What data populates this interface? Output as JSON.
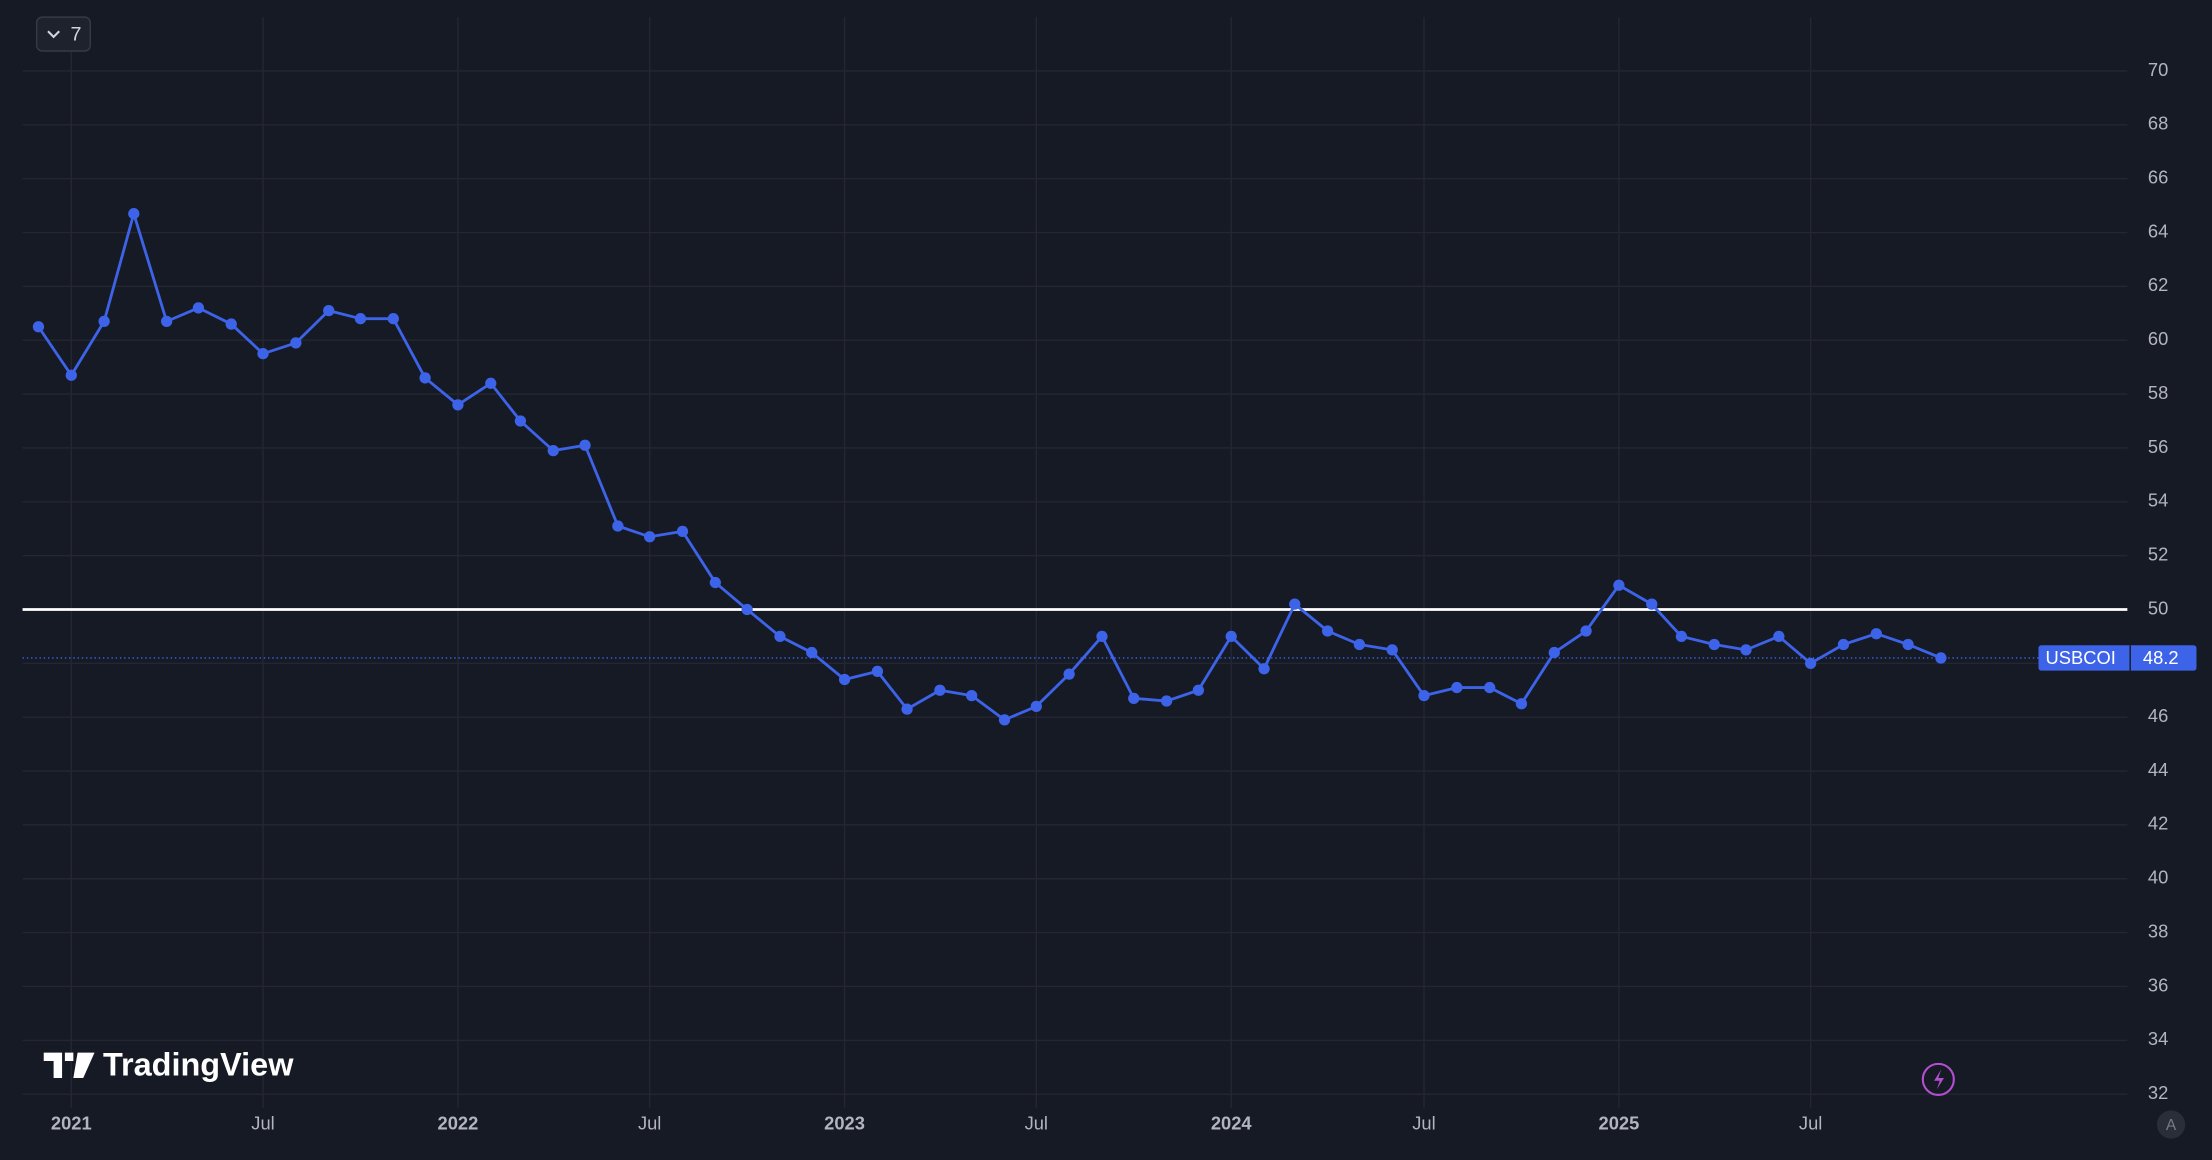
{
  "chart_data": {
    "type": "line",
    "x": [
      "2020-12",
      "2021-01",
      "2021-02",
      "2021-03",
      "2021-04",
      "2021-05",
      "2021-06",
      "2021-07",
      "2021-08",
      "2021-09",
      "2021-10",
      "2021-11",
      "2021-12",
      "2022-01",
      "2022-02",
      "2022-03",
      "2022-04",
      "2022-05",
      "2022-06",
      "2022-07",
      "2022-08",
      "2022-09",
      "2022-10",
      "2022-11",
      "2022-12",
      "2023-01",
      "2023-02",
      "2023-03",
      "2023-04",
      "2023-05",
      "2023-06",
      "2023-07",
      "2023-08",
      "2023-09",
      "2023-10",
      "2023-11",
      "2023-12",
      "2024-01",
      "2024-02",
      "2024-03",
      "2024-04",
      "2024-05",
      "2024-06",
      "2024-07",
      "2024-08",
      "2024-09",
      "2024-10",
      "2024-11",
      "2024-12",
      "2025-01",
      "2025-02",
      "2025-03",
      "2025-04",
      "2025-05",
      "2025-06",
      "2025-07",
      "2025-08",
      "2025-09",
      "2025-10",
      "2025-11"
    ],
    "series": [
      {
        "name": "USBCOI",
        "color": "#3d63e8",
        "values": [
          60.5,
          58.7,
          60.7,
          64.7,
          60.7,
          61.2,
          60.6,
          59.5,
          59.9,
          61.1,
          60.8,
          60.8,
          58.6,
          57.6,
          58.4,
          57.0,
          55.9,
          56.1,
          53.1,
          52.7,
          52.9,
          51.0,
          50.0,
          49.0,
          48.4,
          47.4,
          47.7,
          46.3,
          47.0,
          46.8,
          45.9,
          46.4,
          47.6,
          49.0,
          46.7,
          46.6,
          47.0,
          49.0,
          47.8,
          50.2,
          49.2,
          48.7,
          48.5,
          46.8,
          47.1,
          47.1,
          46.5,
          48.4,
          49.2,
          50.9,
          50.2,
          49.0,
          48.7,
          48.5,
          49.0,
          48.0,
          48.7,
          49.1,
          48.7,
          48.2
        ]
      }
    ],
    "xlim": [
      "2020-11-16",
      "2026-04-26"
    ],
    "xticks": [
      {
        "value": "2021-01",
        "label": "2021"
      },
      {
        "value": "2021-07",
        "label": "Jul"
      },
      {
        "value": "2022-01",
        "label": "2022"
      },
      {
        "value": "2022-07",
        "label": "Jul"
      },
      {
        "value": "2023-01",
        "label": "2023"
      },
      {
        "value": "2023-07",
        "label": "Jul"
      },
      {
        "value": "2024-01",
        "label": "2024"
      },
      {
        "value": "2024-07",
        "label": "Jul"
      },
      {
        "value": "2025-01",
        "label": "2025"
      },
      {
        "value": "2025-07",
        "label": "Jul"
      }
    ],
    "ylim": [
      31.5,
      72
    ],
    "yticks": [
      32,
      34,
      36,
      38,
      40,
      42,
      44,
      46,
      48,
      50,
      52,
      54,
      56,
      58,
      60,
      62,
      64,
      66,
      68,
      70
    ],
    "hlines": [
      {
        "value": 50,
        "color": "#ffffff"
      }
    ],
    "grid": true
  },
  "ui": {
    "collapse_count": "7",
    "watermark": "TradingView",
    "auto_button": "A"
  }
}
